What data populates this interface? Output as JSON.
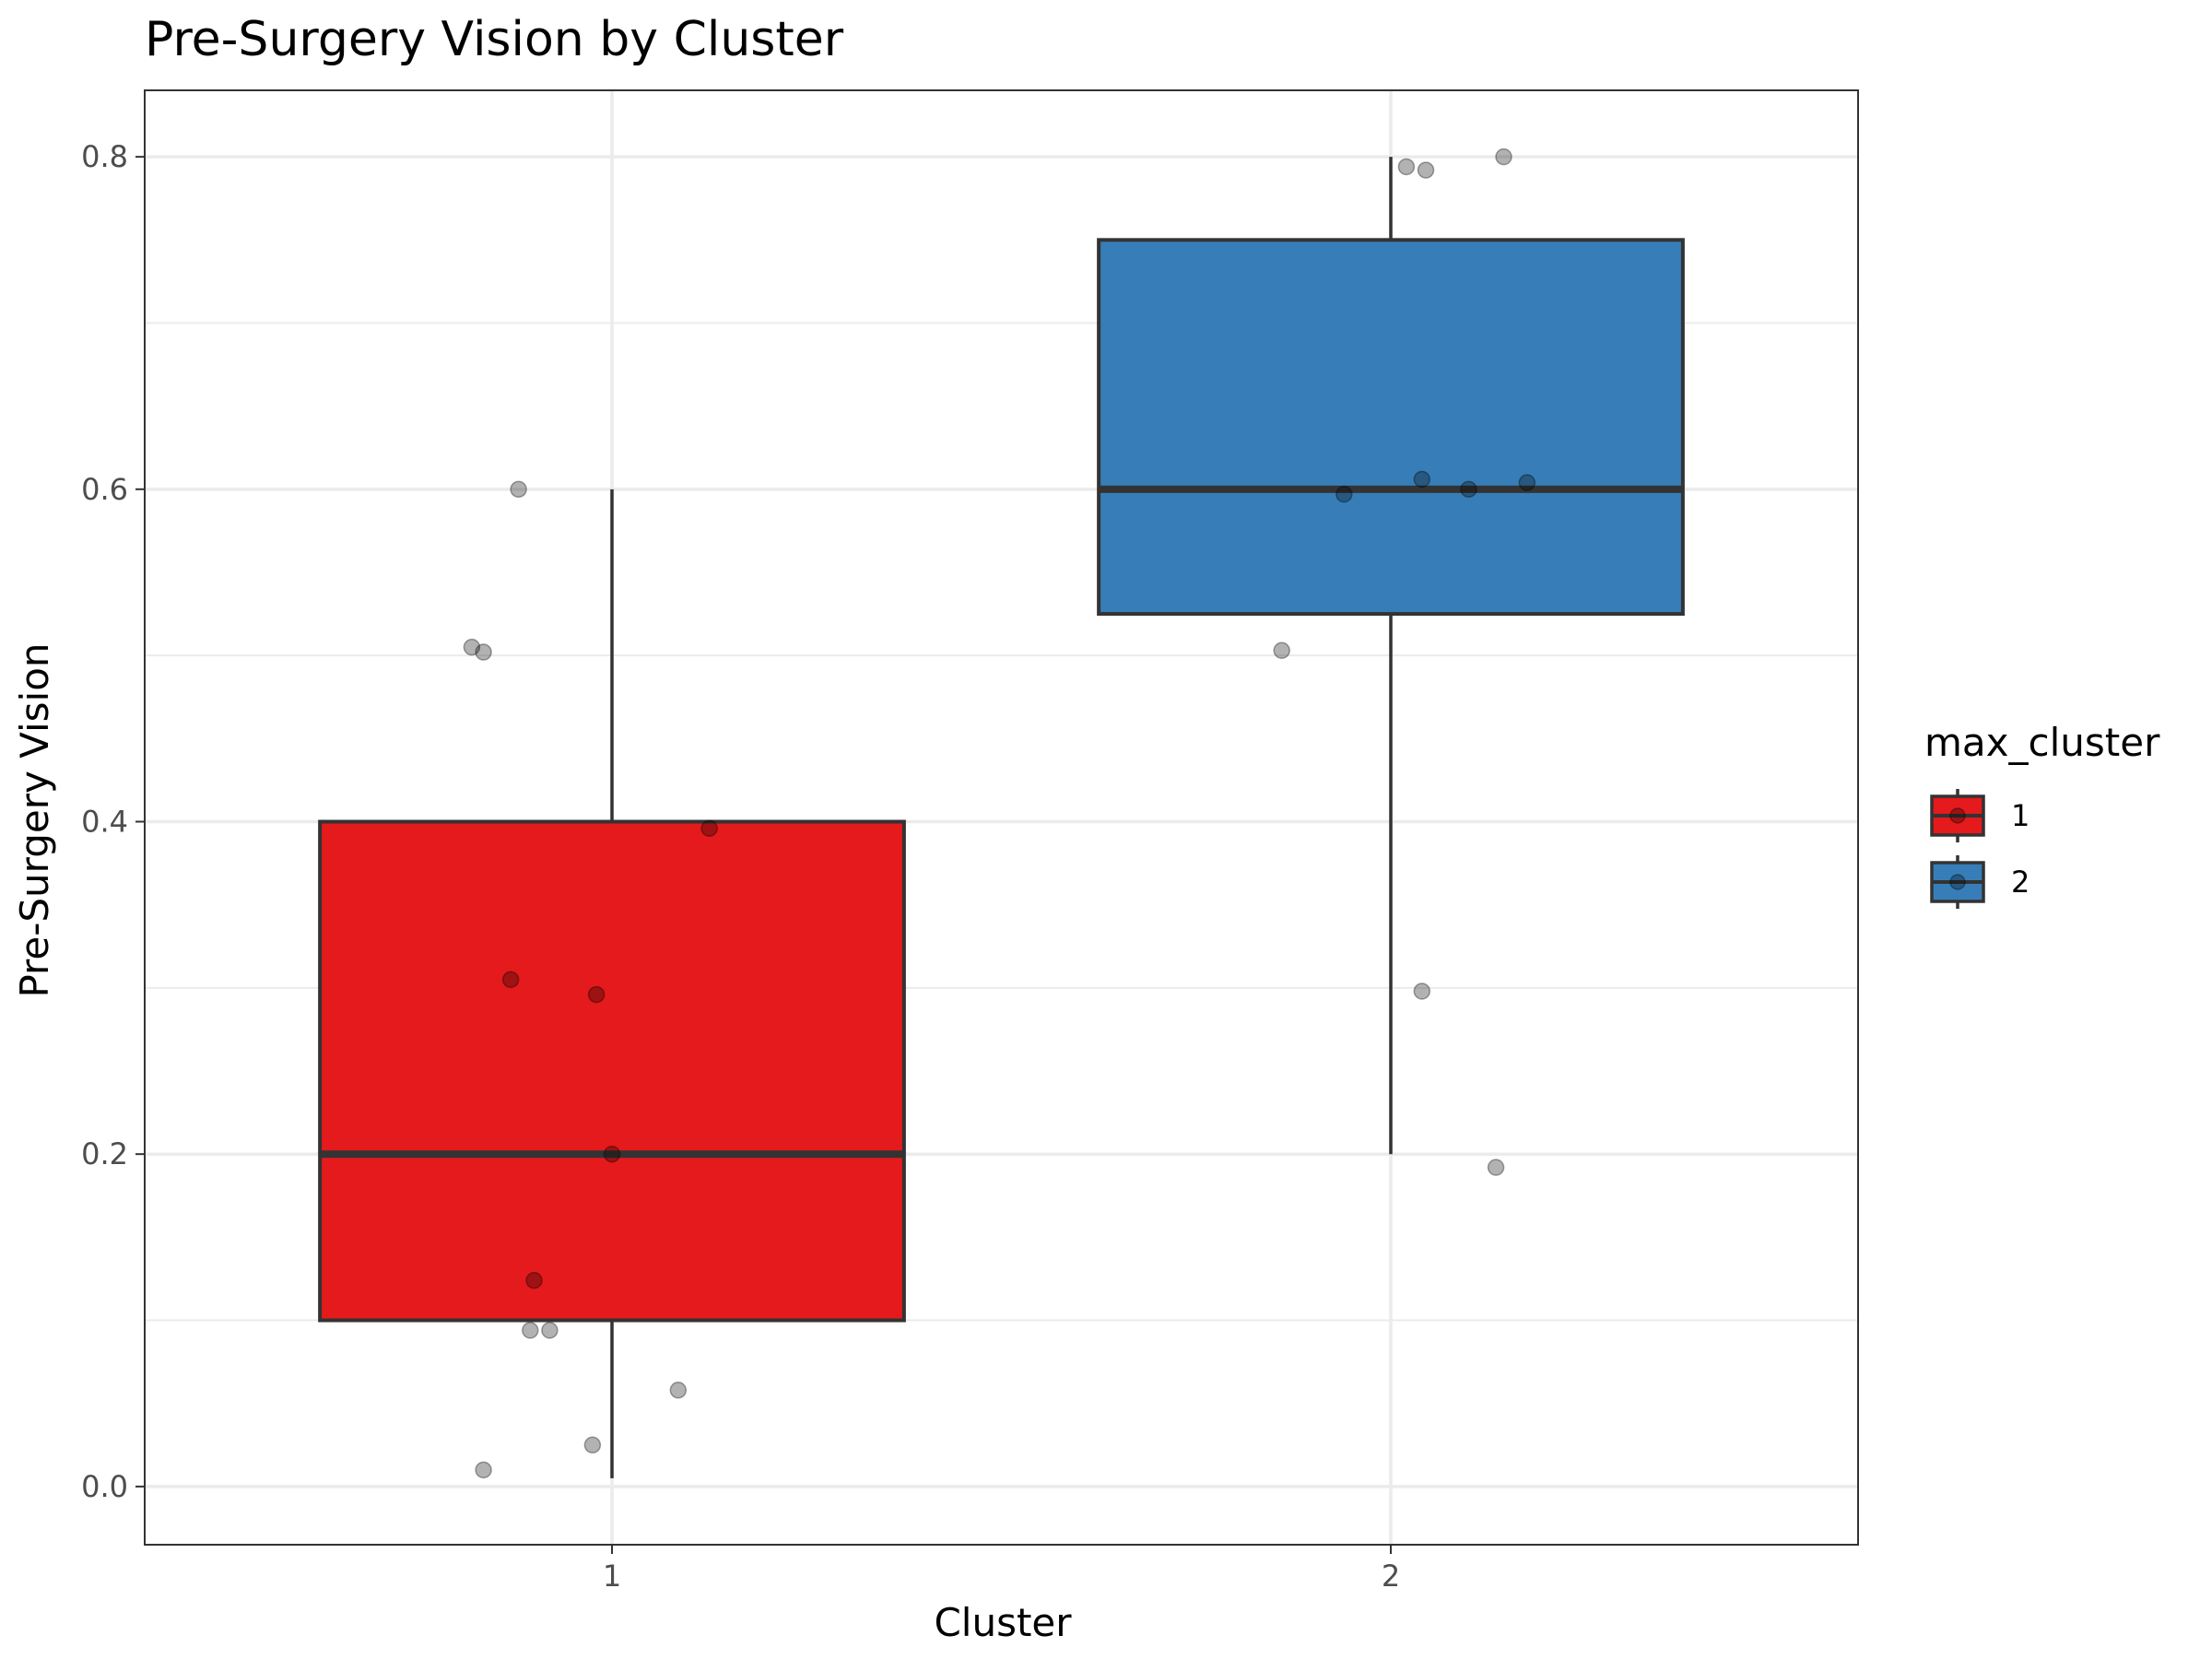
{
  "chart_data": {
    "type": "box",
    "title": "Pre-Surgery Vision by Cluster",
    "xlabel": "Cluster",
    "ylabel": "Pre-Surgery Vision",
    "categories": [
      "1",
      "2"
    ],
    "ylim": [
      -0.035,
      0.84
    ],
    "yticks": [
      0.0,
      0.2,
      0.4,
      0.6,
      0.8
    ],
    "ytick_labels": [
      "0.0",
      "0.2",
      "0.4",
      "0.6",
      "0.8"
    ],
    "grid": true,
    "legend": {
      "title": "max_cluster",
      "position": "right",
      "entries": [
        {
          "label": "1",
          "color": "#E41A1C"
        },
        {
          "label": "2",
          "color": "#377EB8"
        }
      ]
    },
    "boxes": [
      {
        "category": "1",
        "fill": "#E41A1C",
        "whisker_low": 0.005,
        "q1": 0.1,
        "median": 0.2,
        "q3": 0.4,
        "whisker_high": 0.6
      },
      {
        "category": "2",
        "fill": "#377EB8",
        "whisker_low": 0.2,
        "q1": 0.525,
        "median": 0.6,
        "q3": 0.75,
        "whisker_high": 0.8
      }
    ],
    "points": [
      {
        "x": 0.88,
        "y": 0.6
      },
      {
        "x": 0.82,
        "y": 0.505
      },
      {
        "x": 0.835,
        "y": 0.502
      },
      {
        "x": 1.125,
        "y": 0.396
      },
      {
        "x": 0.87,
        "y": 0.305
      },
      {
        "x": 0.98,
        "y": 0.296
      },
      {
        "x": 1.0,
        "y": 0.2
      },
      {
        "x": 0.9,
        "y": 0.124
      },
      {
        "x": 0.895,
        "y": 0.094
      },
      {
        "x": 0.92,
        "y": 0.094
      },
      {
        "x": 1.085,
        "y": 0.058
      },
      {
        "x": 0.975,
        "y": 0.025
      },
      {
        "x": 0.835,
        "y": 0.01
      },
      {
        "x": 2.145,
        "y": 0.8
      },
      {
        "x": 2.02,
        "y": 0.794
      },
      {
        "x": 2.045,
        "y": 0.792
      },
      {
        "x": 2.04,
        "y": 0.606
      },
      {
        "x": 2.175,
        "y": 0.604
      },
      {
        "x": 2.1,
        "y": 0.6
      },
      {
        "x": 1.94,
        "y": 0.597
      },
      {
        "x": 1.86,
        "y": 0.503
      },
      {
        "x": 2.04,
        "y": 0.298
      },
      {
        "x": 2.135,
        "y": 0.192
      }
    ]
  }
}
